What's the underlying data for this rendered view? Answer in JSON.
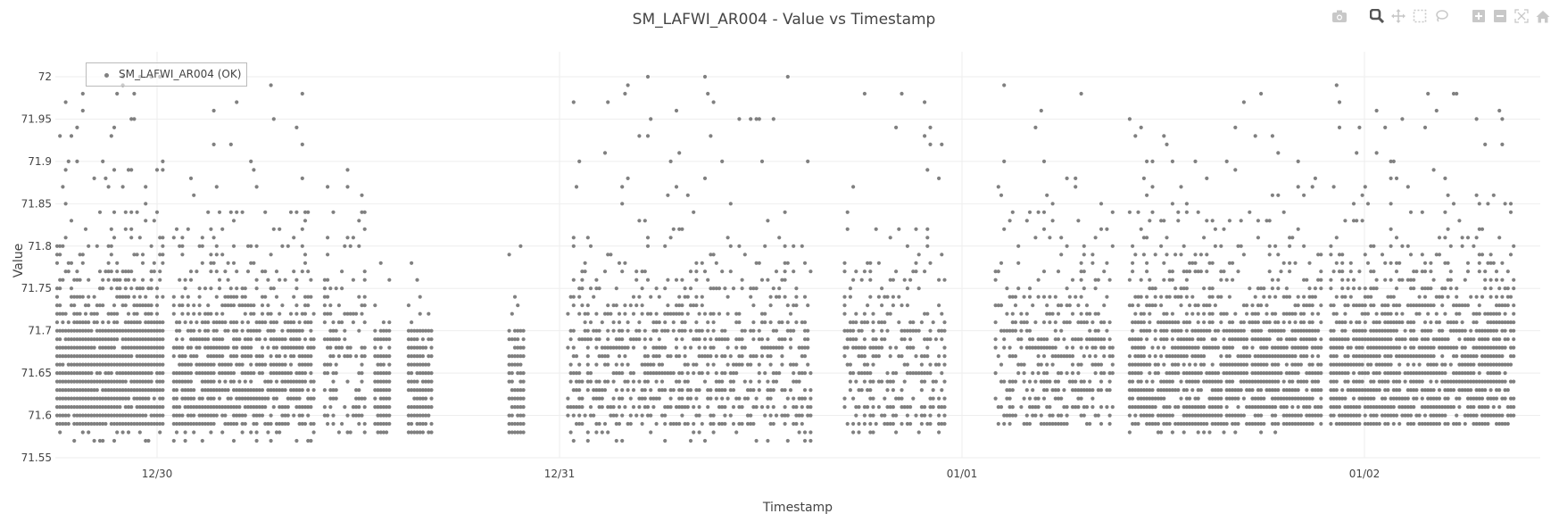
{
  "chart_data": {
    "type": "scatter",
    "title": "SM_LAFWI_AR004 - Value vs Timestamp",
    "xlabel": "Timestamp",
    "ylabel": "Value",
    "ylim": [
      71.55,
      72.0
    ],
    "y_ticks": [
      "71.55",
      "71.6",
      "71.65",
      "71.7",
      "71.75",
      "71.8",
      "71.85",
      "71.9",
      "71.95",
      "72"
    ],
    "x_ticks": [
      "12/30",
      "12/31",
      "01/01",
      "01/02"
    ],
    "x_range_approx": [
      "12/29 18:00",
      "01/02 09:00"
    ],
    "grid": true,
    "legend": [
      {
        "name": "SM_LAFWI_AR004 (OK)",
        "color": "#808080"
      }
    ],
    "legend_position": "top-left inside",
    "marker_color": "#808080",
    "value_step": 0.01,
    "series": [
      {
        "name": "SM_LAFWI_AR004 (OK)",
        "description": "Dense quantized readings (0.01 steps) clustered in time segments; most points between 71.58 and 71.72, sparse outliers up to 72.0 and down to 71.57",
        "segments": [
          {
            "start": "12/29 18:00",
            "end": "12/30 00:30",
            "min": 71.57,
            "max": 72.0,
            "density": "very high"
          },
          {
            "start": "12/30 01:00",
            "end": "12/30 09:30",
            "min": 71.57,
            "max": 72.0,
            "density": "high"
          },
          {
            "start": "12/30 10:00",
            "end": "12/30 12:30",
            "min": 71.58,
            "max": 71.99,
            "density": "medium"
          },
          {
            "start": "12/30 13:00",
            "end": "12/30 14:00",
            "min": 71.58,
            "max": 71.78,
            "density": "very low"
          },
          {
            "start": "12/30 15:00",
            "end": "12/30 16:30",
            "min": 71.58,
            "max": 71.78,
            "density": "very low"
          },
          {
            "start": "12/30 21:00",
            "end": "12/30 22:00",
            "min": 71.58,
            "max": 71.8,
            "density": "very low"
          },
          {
            "start": "12/31 00:30",
            "end": "12/31 15:00",
            "min": 71.57,
            "max": 72.0,
            "density": "medium"
          },
          {
            "start": "12/31 17:00",
            "end": "12/31 23:00",
            "min": 71.58,
            "max": 71.98,
            "density": "medium"
          },
          {
            "start": "01/01 02:00",
            "end": "01/01 09:00",
            "min": 71.59,
            "max": 71.99,
            "density": "medium"
          },
          {
            "start": "01/01 10:00",
            "end": "01/01 21:30",
            "min": 71.58,
            "max": 71.98,
            "density": "high"
          },
          {
            "start": "01/01 22:00",
            "end": "01/02 09:00",
            "min": 71.59,
            "max": 72.0,
            "density": "high"
          }
        ]
      }
    ]
  },
  "toolbar": {
    "items": [
      {
        "name": "camera-icon",
        "label": "Download plot as a png"
      },
      {
        "name": "zoom-icon",
        "label": "Zoom",
        "active": true
      },
      {
        "name": "pan-icon",
        "label": "Pan"
      },
      {
        "name": "box-select-icon",
        "label": "Box Select"
      },
      {
        "name": "lasso-select-icon",
        "label": "Lasso Select"
      },
      {
        "name": "zoom-in-icon",
        "label": "Zoom in"
      },
      {
        "name": "zoom-out-icon",
        "label": "Zoom out"
      },
      {
        "name": "autoscale-icon",
        "label": "Autoscale"
      },
      {
        "name": "reset-axes-icon",
        "label": "Reset axes"
      }
    ]
  },
  "legend": {
    "label": "SM_LAFWI_AR004 (OK)"
  },
  "colors": {
    "marker": "#808080",
    "grid": "#eeeeee",
    "text": "#444444",
    "icon": "#b4b4b4",
    "icon_active": "#666666"
  }
}
